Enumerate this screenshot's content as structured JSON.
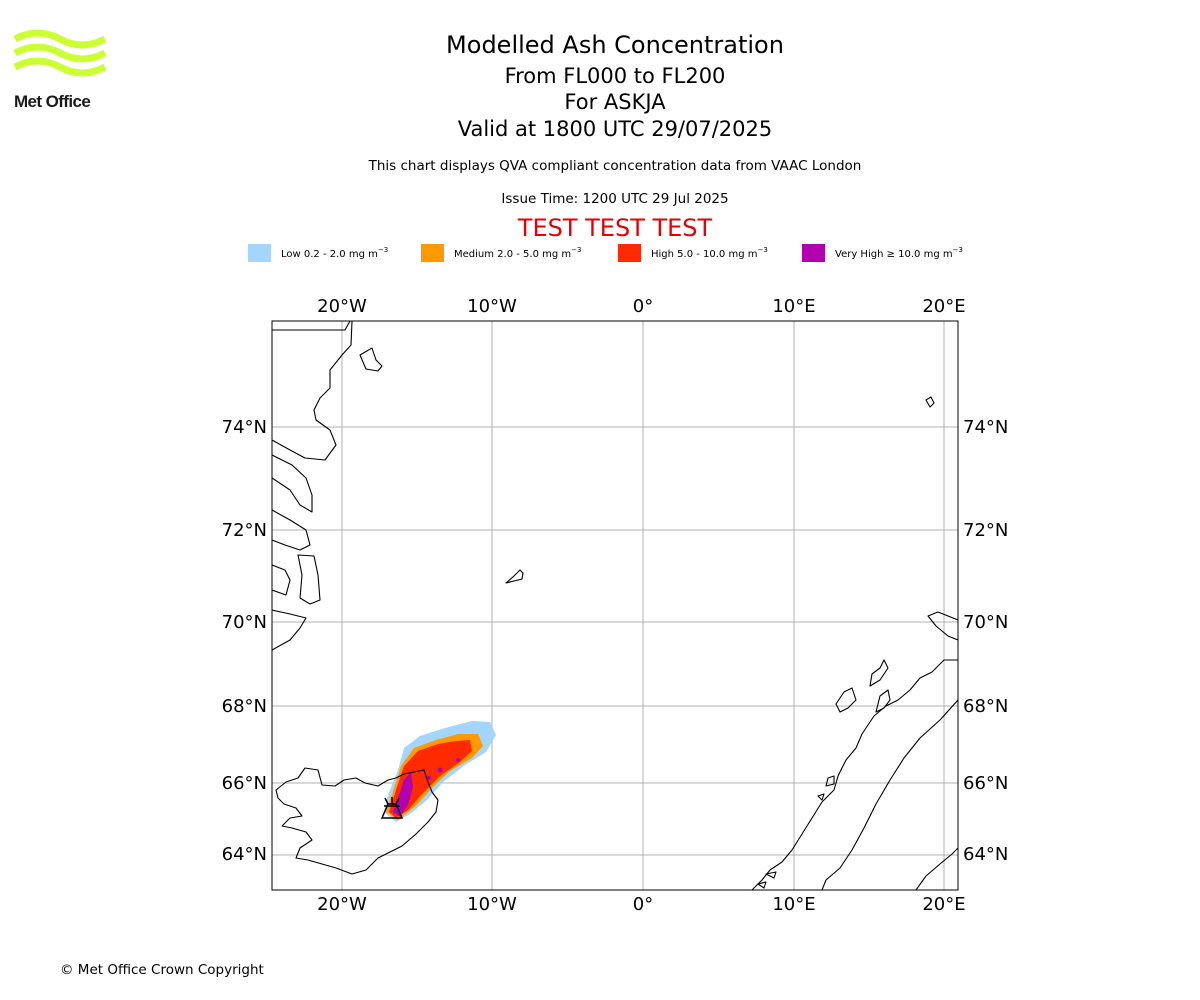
{
  "logo": {
    "text": "Met Office",
    "stripe_color": "#ccff33"
  },
  "header": {
    "title": "Modelled Ash Concentration",
    "flight_levels": "From FL000 to FL200",
    "volcano": "For ASKJA",
    "valid_time": "Valid at 1800 UTC 29/07/2025",
    "note": "This chart displays QVA compliant concentration data from VAAC London",
    "issue_time": "Issue Time: 1200 UTC 29 Jul 2025",
    "test_banner": "TEST TEST TEST"
  },
  "legend": [
    {
      "label": "Low 0.2 - 2.0 mg m",
      "exp": "−3",
      "color": "#a3d5ff"
    },
    {
      "label": "Medium 2.0 - 5.0 mg m",
      "exp": "−3",
      "color": "#ff9900"
    },
    {
      "label": "High 5.0 - 10.0 mg m",
      "exp": "−3",
      "color": "#ff2a00"
    },
    {
      "label": "Very High  ≥  10.0 mg m",
      "exp": "−3",
      "color": "#b000b0"
    }
  ],
  "map": {
    "lon_ticks": [
      "20°W",
      "10°W",
      "0°",
      "10°E",
      "20°E"
    ],
    "lat_ticks": [
      "74°N",
      "72°N",
      "70°N",
      "68°N",
      "66°N",
      "64°N"
    ],
    "gridlines": true,
    "volcano_marker": "volcano-icon"
  },
  "footer": {
    "copyright": "© Met Office Crown Copyright"
  }
}
